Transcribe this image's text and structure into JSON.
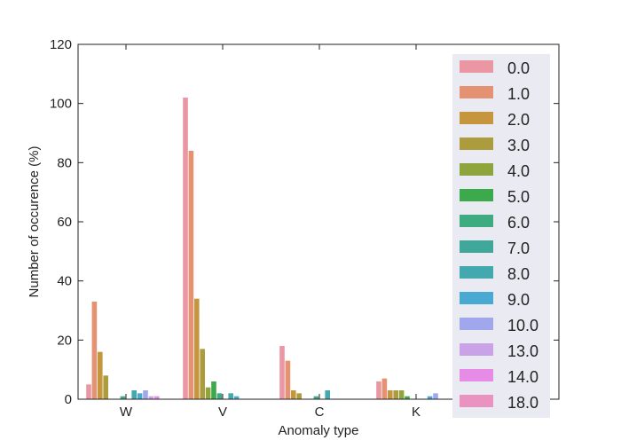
{
  "chart_data": {
    "type": "bar",
    "categories": [
      "W",
      "V",
      "C",
      "K"
    ],
    "xlabel": "Anomaly type",
    "ylabel": "Number of  occurence (%)",
    "ylim": [
      0,
      120
    ],
    "yticks": [
      0,
      20,
      40,
      60,
      80,
      100,
      120
    ],
    "grid": false,
    "legend_placement": "right",
    "series": [
      {
        "name": "0.0",
        "color": "#ea96a3",
        "values": [
          5,
          102,
          18,
          6
        ]
      },
      {
        "name": "1.0",
        "color": "#e59272",
        "values": [
          33,
          84,
          13,
          7
        ]
      },
      {
        "name": "2.0",
        "color": "#c6963f",
        "values": [
          16,
          34,
          3,
          3
        ]
      },
      {
        "name": "3.0",
        "color": "#ad9c3e",
        "values": [
          8,
          17,
          2,
          3
        ]
      },
      {
        "name": "4.0",
        "color": "#8ea43d",
        "values": [
          0,
          4,
          0,
          3
        ]
      },
      {
        "name": "5.0",
        "color": "#3ba94c",
        "values": [
          0,
          6,
          0,
          1
        ]
      },
      {
        "name": "6.0",
        "color": "#3fab80",
        "values": [
          1,
          2,
          1,
          0
        ]
      },
      {
        "name": "7.0",
        "color": "#3fa89a",
        "values": [
          0,
          0,
          0,
          0
        ]
      },
      {
        "name": "8.0",
        "color": "#44a9ae",
        "values": [
          3,
          2,
          3,
          0
        ]
      },
      {
        "name": "9.0",
        "color": "#4aa9d2",
        "values": [
          2,
          1,
          0,
          1
        ]
      },
      {
        "name": "10.0",
        "color": "#a1a7ed",
        "values": [
          3,
          0,
          0,
          2
        ]
      },
      {
        "name": "13.0",
        "color": "#c9a2e8",
        "values": [
          1,
          0,
          0,
          0
        ]
      },
      {
        "name": "14.0",
        "color": "#e68be6",
        "values": [
          1,
          0,
          0,
          0
        ]
      },
      {
        "name": "18.0",
        "color": "#ea93c0",
        "values": [
          0,
          0,
          0,
          0
        ]
      }
    ]
  }
}
